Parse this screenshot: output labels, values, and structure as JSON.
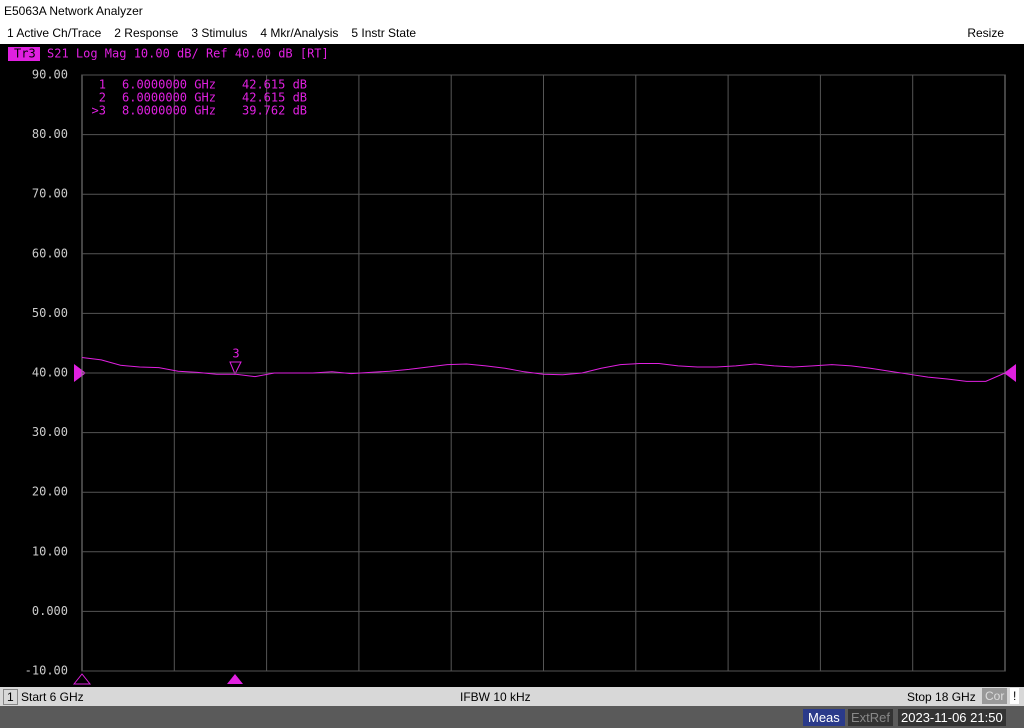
{
  "window": {
    "title": "E5063A Network Analyzer",
    "resize": "Resize"
  },
  "menu": [
    "1 Active Ch/Trace",
    "2 Response",
    "3 Stimulus",
    "4 Mkr/Analysis",
    "5 Instr State"
  ],
  "chart_data": {
    "type": "line",
    "trace_label": "Tr3",
    "title": "S21 Log Mag 10.00 dB/ Ref 40.00 dB [RT]",
    "markers": [
      {
        "label": "1",
        "frequency": "6.0000000 GHz",
        "value": "42.615 dB"
      },
      {
        "label": "2",
        "frequency": "6.0000000 GHz",
        "value": "42.615 dB"
      },
      {
        "label": ">3",
        "frequency": "8.0000000 GHz",
        "value": "39.762 dB"
      }
    ],
    "marker_flag": "3",
    "x": [
      6.0,
      6.25,
      6.5,
      6.75,
      7.0,
      7.25,
      7.5,
      7.75,
      8.0,
      8.25,
      8.5,
      8.75,
      9.0,
      9.25,
      9.5,
      9.75,
      10.0,
      10.25,
      10.5,
      10.75,
      11.0,
      11.25,
      11.5,
      11.75,
      12.0,
      12.25,
      12.5,
      12.75,
      13.0,
      13.25,
      13.5,
      13.75,
      14.0,
      14.25,
      14.5,
      14.75,
      15.0,
      15.25,
      15.5,
      15.75,
      16.0,
      16.25,
      16.5,
      16.75,
      17.0,
      17.25,
      17.5,
      17.75,
      18.0
    ],
    "values": [
      42.6,
      42.2,
      41.3,
      41.0,
      40.9,
      40.3,
      40.1,
      39.8,
      39.8,
      39.4,
      40.0,
      40.0,
      40.0,
      40.2,
      39.9,
      40.1,
      40.3,
      40.6,
      41.0,
      41.4,
      41.5,
      41.2,
      40.8,
      40.2,
      39.8,
      39.7,
      40.0,
      40.8,
      41.4,
      41.6,
      41.6,
      41.2,
      41.0,
      41.0,
      41.2,
      41.5,
      41.2,
      41.0,
      41.2,
      41.4,
      41.2,
      40.8,
      40.3,
      39.8,
      39.3,
      39.0,
      38.6,
      38.6,
      40.0
    ],
    "color": "#e020e0",
    "xlim": [
      6,
      18
    ],
    "ylim": [
      -10,
      90
    ],
    "yticks": [
      {
        "value": 90,
        "label": "90.00"
      },
      {
        "value": 80,
        "label": "80.00"
      },
      {
        "value": 70,
        "label": "70.00"
      },
      {
        "value": 60,
        "label": "60.00"
      },
      {
        "value": 50,
        "label": "50.00"
      },
      {
        "value": 40,
        "label": "40.00"
      },
      {
        "value": 30,
        "label": "30.00"
      },
      {
        "value": 20,
        "label": "20.00"
      },
      {
        "value": 10,
        "label": "10.00"
      },
      {
        "value": 0,
        "label": "0.000"
      },
      {
        "value": -10,
        "label": "-10.00"
      }
    ],
    "grid": true
  },
  "footer": {
    "channel": "1",
    "start": "Start 6 GHz",
    "ifbw": "IFBW 10 kHz",
    "stop": "Stop 18 GHz",
    "cor": "Cor",
    "warn": "!"
  },
  "status": {
    "meas": "Meas",
    "extref": "ExtRef",
    "datetime": "2023-11-06 21:50"
  }
}
